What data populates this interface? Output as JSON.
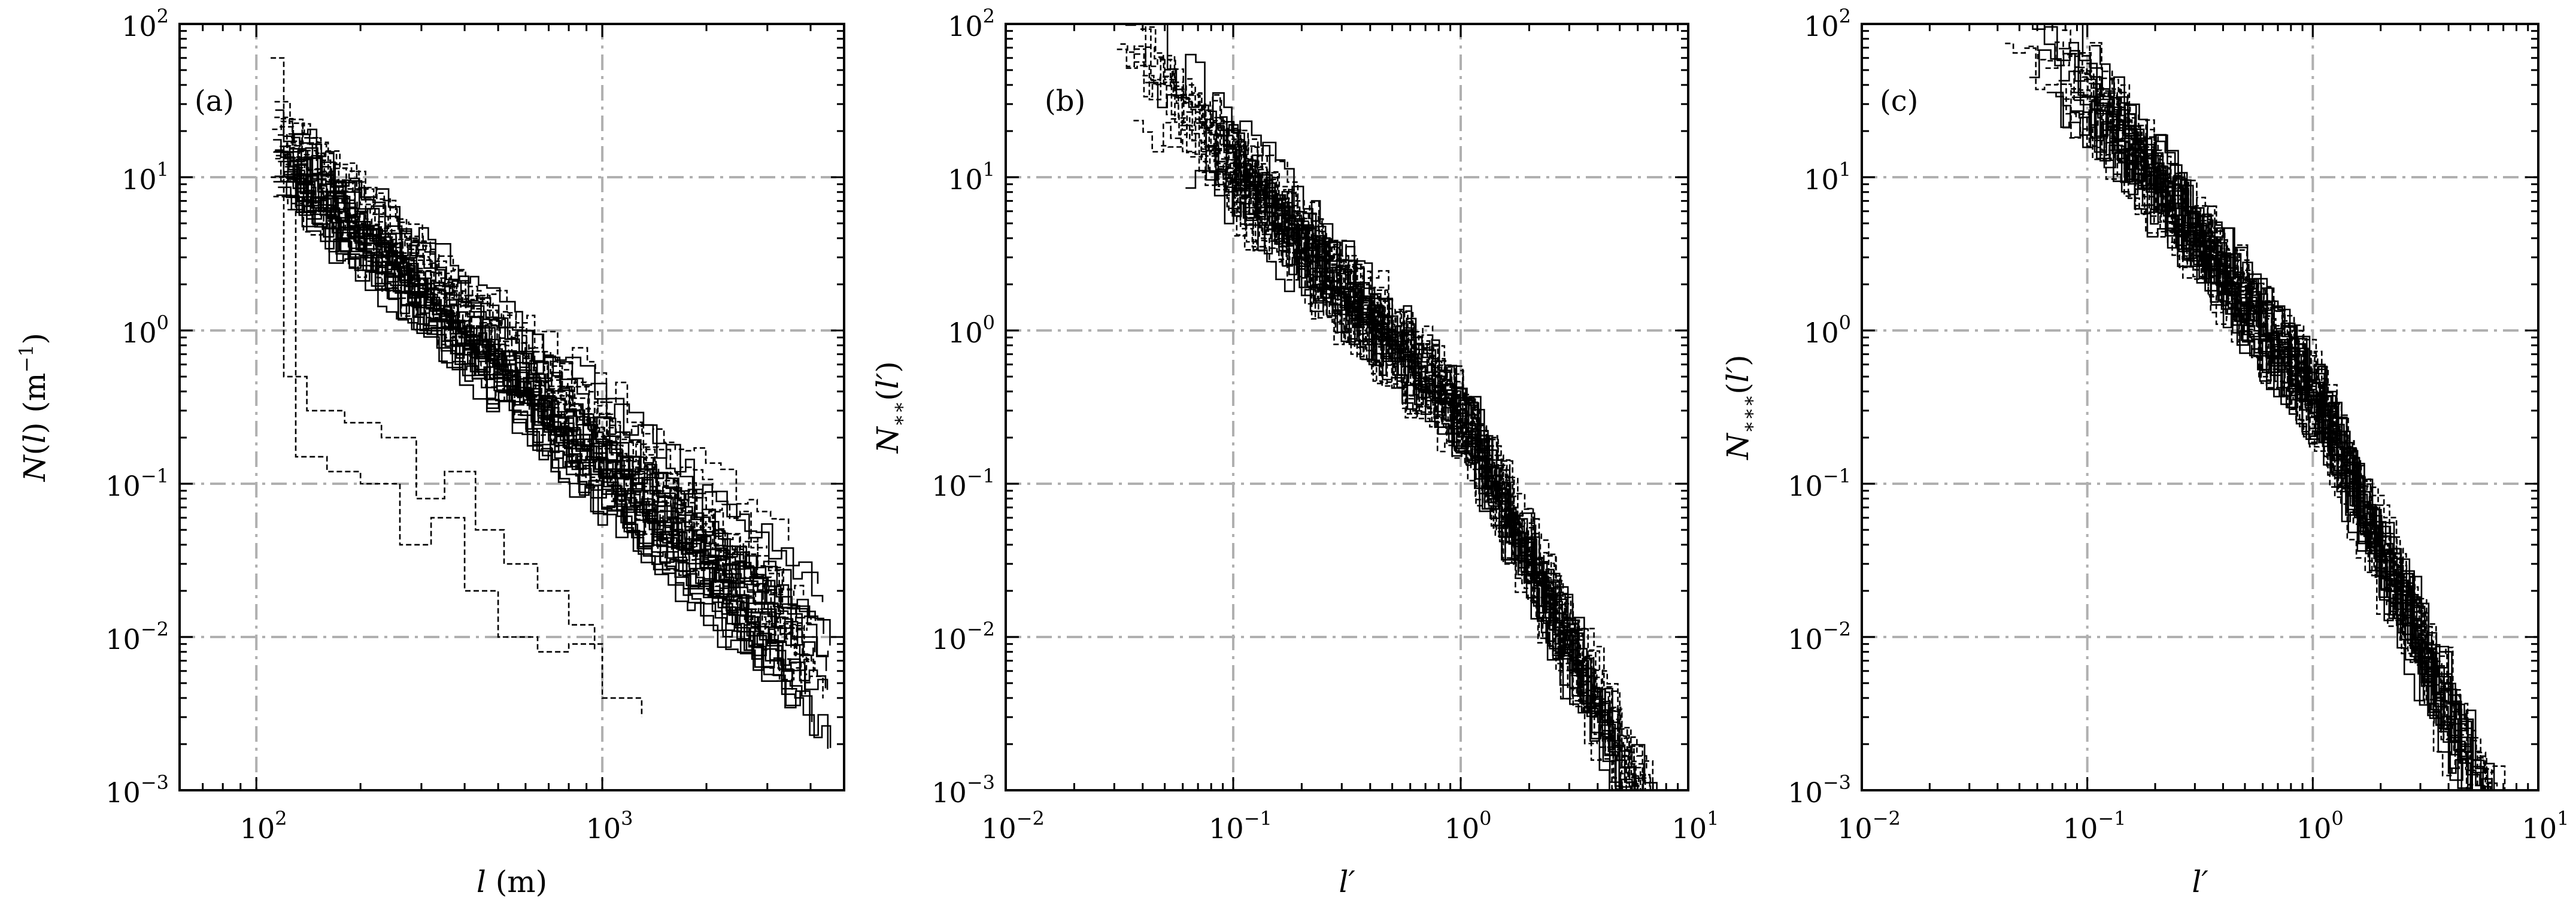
{
  "chart_data": [
    {
      "panel": "(a)",
      "type": "line",
      "style": "stepped dashed black lines, many overlapping series",
      "xlabel": "l (m)",
      "xlabel_parts": {
        "italic": "l",
        "rest": " (m)"
      },
      "ylabel": "N(l) (m−1)",
      "xscale": "log",
      "yscale": "log",
      "xlim": [
        60,
        5000
      ],
      "ylim": [
        0.001,
        100
      ],
      "xticks": [
        100,
        1000
      ],
      "xtick_labels": [
        [
          "10",
          "2"
        ],
        [
          "10",
          "3"
        ]
      ],
      "yticks": [
        0.001,
        0.01,
        0.1,
        1,
        10,
        100
      ],
      "ytick_labels": [
        [
          "10",
          "−3"
        ],
        [
          "10",
          "−2"
        ],
        [
          "10",
          "−1"
        ],
        [
          "10",
          "0"
        ],
        [
          "10",
          "1"
        ],
        [
          "10",
          "2"
        ]
      ],
      "grid": true,
      "grid_style": "dash-dot grey",
      "series_model": {
        "x_start": 110,
        "x_end": 4800,
        "y_at_start": [
          14,
          8
        ],
        "slope": -2.1
      },
      "series_count": 45,
      "outlier_series": [
        {
          "x": [
            110,
            130,
            160,
            200,
            260,
            320,
            400,
            500,
            650,
            800,
            1000,
            1300
          ],
          "y": [
            10,
            0.15,
            0.12,
            0.1,
            0.04,
            0.06,
            0.02,
            0.01,
            0.008,
            0.009,
            0.004,
            0.003
          ]
        },
        {
          "x": [
            110,
            120,
            140,
            180,
            230,
            290,
            350,
            430,
            520,
            650,
            800,
            950
          ],
          "y": [
            60,
            0.5,
            0.3,
            0.25,
            0.2,
            0.08,
            0.12,
            0.05,
            0.03,
            0.02,
            0.012,
            0.008
          ]
        }
      ]
    },
    {
      "panel": "(b)",
      "type": "line",
      "style": "stepped dashed black lines, many overlapping series",
      "xlabel": "l′",
      "ylabel": "N∗∗(l′)",
      "xscale": "log",
      "yscale": "log",
      "xlim": [
        0.01,
        10
      ],
      "ylim": [
        0.001,
        100
      ],
      "xticks": [
        0.01,
        0.1,
        1,
        10
      ],
      "xtick_labels": [
        [
          "10",
          "−2"
        ],
        [
          "10",
          "−1"
        ],
        [
          "10",
          "0"
        ],
        [
          "10",
          "1"
        ]
      ],
      "yticks": [
        0.001,
        0.01,
        0.1,
        1,
        10,
        100
      ],
      "ytick_labels": [
        [
          "10",
          "−3"
        ],
        [
          "10",
          "−2"
        ],
        [
          "10",
          "−1"
        ],
        [
          "10",
          "0"
        ],
        [
          "10",
          "1"
        ],
        [
          "10",
          "2"
        ]
      ],
      "grid": true,
      "grid_style": "dash-dot grey",
      "series_model": {
        "x_start": 0.03,
        "x_end": 8,
        "y_at_one": 0.25,
        "slope_low": -1.6,
        "slope_high": -3.2
      },
      "series_count": 40
    },
    {
      "panel": "(c)",
      "type": "line",
      "style": "stepped dashed black lines, many overlapping series",
      "xlabel": "l′",
      "ylabel": "N∗∗∗(l′)",
      "xscale": "log",
      "yscale": "log",
      "xlim": [
        0.01,
        10
      ],
      "ylim": [
        0.001,
        100
      ],
      "xticks": [
        0.01,
        0.1,
        1,
        10
      ],
      "xtick_labels": [
        [
          "10",
          "−2"
        ],
        [
          "10",
          "−1"
        ],
        [
          "10",
          "0"
        ],
        [
          "10",
          "1"
        ]
      ],
      "yticks": [
        0.001,
        0.01,
        0.1,
        1,
        10,
        100
      ],
      "ytick_labels": [
        [
          "10",
          "−3"
        ],
        [
          "10",
          "−2"
        ],
        [
          "10",
          "−1"
        ],
        [
          "10",
          "0"
        ],
        [
          "10",
          "1"
        ],
        [
          "10",
          "2"
        ]
      ],
      "grid": true,
      "grid_style": "dash-dot grey",
      "series_model": {
        "x_start": 0.04,
        "x_end": 8,
        "y_at_one": 0.35,
        "slope_low": -2.0,
        "slope_high": -3.4
      },
      "series_count": 40
    }
  ],
  "colors": {
    "line": "#000000",
    "grid": "#b0b0b0",
    "axes": "#000000",
    "background": "#ffffff"
  }
}
